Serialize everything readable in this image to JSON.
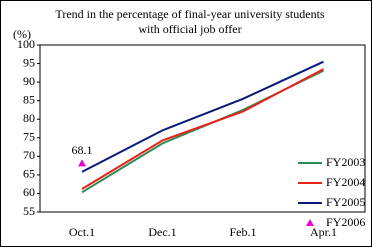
{
  "chart_data": {
    "type": "line",
    "title": "Trend in the percentage of final-year university students with official job offer",
    "y_label": "(%)",
    "categories": [
      "Oct.1",
      "Dec.1",
      "Feb.1",
      "Apr.1"
    ],
    "series": [
      {
        "name": "FY2003",
        "color": "#2e8b57",
        "values": [
          60.3,
          73.5,
          82.5,
          93.1
        ]
      },
      {
        "name": "FY2004",
        "color": "#e8221a",
        "values": [
          61.2,
          74.3,
          82.1,
          93.5
        ]
      },
      {
        "name": "FY2005",
        "color": "#0a1a7a",
        "values": [
          65.8,
          77.0,
          85.5,
          95.5
        ]
      },
      {
        "name": "FY2006",
        "color": "#ee00cc",
        "marker": "triangle",
        "values": [
          68.1,
          null,
          null,
          null
        ]
      }
    ],
    "ylim": [
      55,
      100
    ],
    "yticks": [
      55,
      60,
      65,
      70,
      75,
      80,
      85,
      90,
      95,
      100
    ],
    "legend": "lower right"
  }
}
